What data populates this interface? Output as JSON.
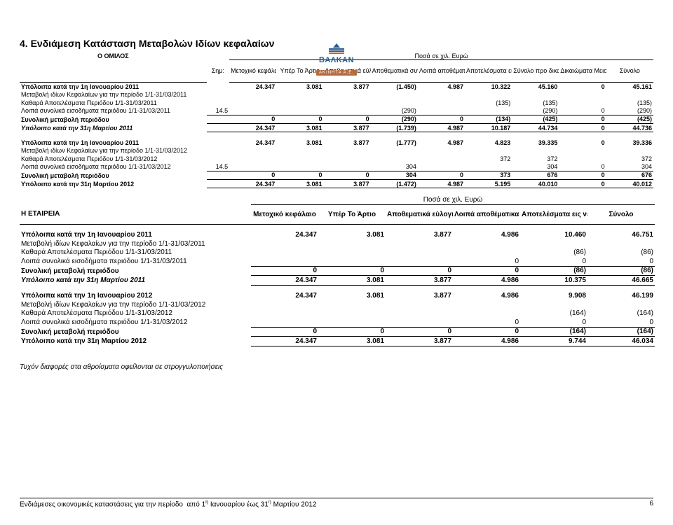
{
  "brand": {
    "name": "ΒΑΛΚΑΝ",
    "sub": "ΑΚΙΝΗΤΑ Α.Ε.",
    "accent_color": "#2a5c8d",
    "sub_bg": "#b36b3d"
  },
  "section_title": "4.  Ενδιάμεση Κατάσταση Μεταβολών Ιδίων κεφαλαίων",
  "group_label": "Ο ΟΜΙΛΟΣ",
  "company_label": "Η ΕΤΑΙΡΕΙΑ",
  "currency_header": "Ποσά σε χιλ. Ευρώ",
  "sim_header": "Σημ:",
  "group_cols": [
    "Μετοχικό κεφάλαιο",
    "Υπέρ Το Άρτιο",
    "Αποθεματικά εύλογης αξίας",
    "Αποθεματικά συν/κων διαφορών",
    "Λοιπά αποθέματικα",
    "Αποτελέσματα εις νέον",
    "Σύνολο προ δικαιωμάτων μειοψηφίας",
    "Δικαιώματα Μειοψηφίας",
    "Σύνολο"
  ],
  "company_cols": [
    "Μετοχικό κεφάλαιο",
    "Υπέρ Το Άρτιο",
    "Αποθεματικά εύλογης αξίας",
    "Λοιπά αποθέματικα",
    "Αποτελέσματα εις νέον",
    "Σύνολο"
  ],
  "group_block1": [
    {
      "label": "Υπόλοιπα κατά την 1η Ιανουαρίου 2011",
      "sim": "",
      "v": [
        "24.347",
        "3.081",
        "3.877",
        "(1.450)",
        "4.987",
        "10.322",
        "45.160",
        "0",
        "45.161"
      ],
      "bold": true
    },
    {
      "label": "Μεταβολή ιδίων Κεφαλαίων για την περίοδο 1/1-31/03/2011",
      "sim": "",
      "v": [
        "",
        "",
        "",
        "",
        "",
        "",
        "",
        "",
        ""
      ],
      "bold": false
    },
    {
      "label": "Καθαρά Αποτελέσματα Περιόδου 1/1-31/03/2011",
      "sim": "",
      "v": [
        "",
        "",
        "",
        "",
        "",
        "(135)",
        "(135)",
        "",
        "(135)"
      ],
      "bold": false
    },
    {
      "label": "Λοιπά συνολικά εισοδήματα περιόδου 1/1-31/03/2011",
      "sim": "14.5",
      "v": [
        "",
        "",
        "",
        "(290)",
        "",
        "",
        "(290)",
        "0",
        "(290)"
      ],
      "bold": false
    },
    {
      "label": "Συνολική μεταβολή περιόδου",
      "sim": "",
      "v": [
        "0",
        "0",
        "0",
        "(290)",
        "0",
        "(134)",
        "(425)",
        "0",
        "(425)"
      ],
      "bold": true,
      "topline": true
    },
    {
      "label": "Υπόλοιπο κατά την 31η Μαρτίου 2011",
      "sim": "",
      "v": [
        "24.347",
        "3.081",
        "3.877",
        "(1.739)",
        "4.987",
        "10.187",
        "44.734",
        "0",
        "44.736"
      ],
      "bold": true,
      "italic": true,
      "topline": true,
      "under": true
    }
  ],
  "group_block2": [
    {
      "label": "Υπόλοιπα κατά την 1η Ιανουαρίου 2011",
      "sim": "",
      "v": [
        "24.347",
        "3.081",
        "3.877",
        "(1.777)",
        "4.987",
        "4.823",
        "39.335",
        "0",
        "39.336"
      ],
      "bold": true
    },
    {
      "label": "Μεταβολή ιδίων Κεφαλαίων για την περίοδο 1/1-31/03/2012",
      "sim": "",
      "v": [
        "",
        "",
        "",
        "",
        "",
        "",
        "",
        "",
        ""
      ],
      "bold": false
    },
    {
      "label": "Καθαρά Αποτελέσματα Περιόδου 1/1-31/03/2012",
      "sim": "",
      "v": [
        "",
        "",
        "",
        "",
        "",
        "372",
        "372",
        "",
        "372"
      ],
      "bold": false
    },
    {
      "label": "Λοιπά συνολικά εισοδήματα περιόδου 1/1-31/03/2012",
      "sim": "14.5",
      "v": [
        "",
        "",
        "",
        "304",
        "",
        "",
        "304",
        "0",
        "304"
      ],
      "bold": false
    },
    {
      "label": "Συνολική μεταβολή περιόδου",
      "sim": "",
      "v": [
        "0",
        "0",
        "0",
        "304",
        "0",
        "373",
        "676",
        "0",
        "676"
      ],
      "bold": true,
      "topline": true
    },
    {
      "label": "Υπόλοιπο κατά την 31η Μαρτίου 2012",
      "sim": "",
      "v": [
        "24.347",
        "3.081",
        "3.877",
        "(1.472)",
        "4.987",
        "5.195",
        "40.010",
        "0",
        "40.012"
      ],
      "bold": true,
      "topline": true,
      "under": true
    }
  ],
  "company_block1": [
    {
      "label": "Υπόλοιπα κατά την 1η Ιανουαρίου 2011",
      "v": [
        "24.347",
        "3.081",
        "3.877",
        "4.986",
        "10.460",
        "46.751"
      ],
      "bold": true
    },
    {
      "label": "Μεταβολή ιδίων Κεφαλαίων για την περίοδο 1/1-31/03/2011",
      "v": [
        "",
        "",
        "",
        "",
        "",
        ""
      ],
      "bold": false
    },
    {
      "label": "Καθαρά Αποτελέσματα Περιόδου 1/1-31/03/2011",
      "v": [
        "",
        "",
        "",
        "",
        "(86)",
        "(86)"
      ],
      "bold": false
    },
    {
      "label": "Λοιπά συνολικά εισοδήματα περιόδου 1/1-31/03/2011",
      "v": [
        "",
        "",
        "",
        "0",
        "0",
        "0"
      ],
      "bold": false
    },
    {
      "label": "Συνολική μεταβολή περιόδου",
      "v": [
        "0",
        "0",
        "0",
        "0",
        "(86)",
        "(86)"
      ],
      "bold": true,
      "topline": true
    },
    {
      "label": "Υπόλοιπο κατά την 31η Μαρτίου 2011",
      "v": [
        "24.347",
        "3.081",
        "3.877",
        "4.986",
        "10.375",
        "46.665"
      ],
      "bold": true,
      "italic": true,
      "topline": true,
      "under": true
    }
  ],
  "company_block2": [
    {
      "label": "Υπόλοιπα κατά την 1η Ιανουαρίου 2012",
      "v": [
        "24.347",
        "3.081",
        "3.877",
        "4.986",
        "9.908",
        "46.199"
      ],
      "bold": true
    },
    {
      "label": "Μεταβολή ιδίων Κεφαλαίων για την περίοδο 1/1-31/03/2012",
      "v": [
        "",
        "",
        "",
        "",
        "",
        ""
      ],
      "bold": false
    },
    {
      "label": "Καθαρά Αποτελέσματα Περιόδου 1/1-31/03/2012",
      "v": [
        "",
        "",
        "",
        "",
        "(164)",
        "(164)"
      ],
      "bold": false
    },
    {
      "label": "Λοιπά συνολικά εισοδήματα περιόδου 1/1-31/03/2012",
      "v": [
        "",
        "",
        "",
        "0",
        "0",
        "0"
      ],
      "bold": false
    },
    {
      "label": "Συνολική μεταβολή περιόδου",
      "v": [
        "0",
        "0",
        "0",
        "0",
        "(164)",
        "(164)"
      ],
      "bold": true,
      "topline": true
    },
    {
      "label": "Υπόλοιπο κατά την 31η Μαρτίου 2012",
      "v": [
        "24.347",
        "3.081",
        "3.877",
        "4.986",
        "9.744",
        "46.034"
      ],
      "bold": true,
      "topline": true,
      "under": true
    }
  ],
  "footnote": "Τυχόν διαφορές στα αθροίσματα οφείλονται σε στρογγυλοποιήσεις",
  "footer_left": "Ενδιάμεσες οικονομικές καταστάσεις για την περίοδο  από 1η Ιανουαρίου έως 31η Μαρτίου 2012",
  "page_number": "6"
}
